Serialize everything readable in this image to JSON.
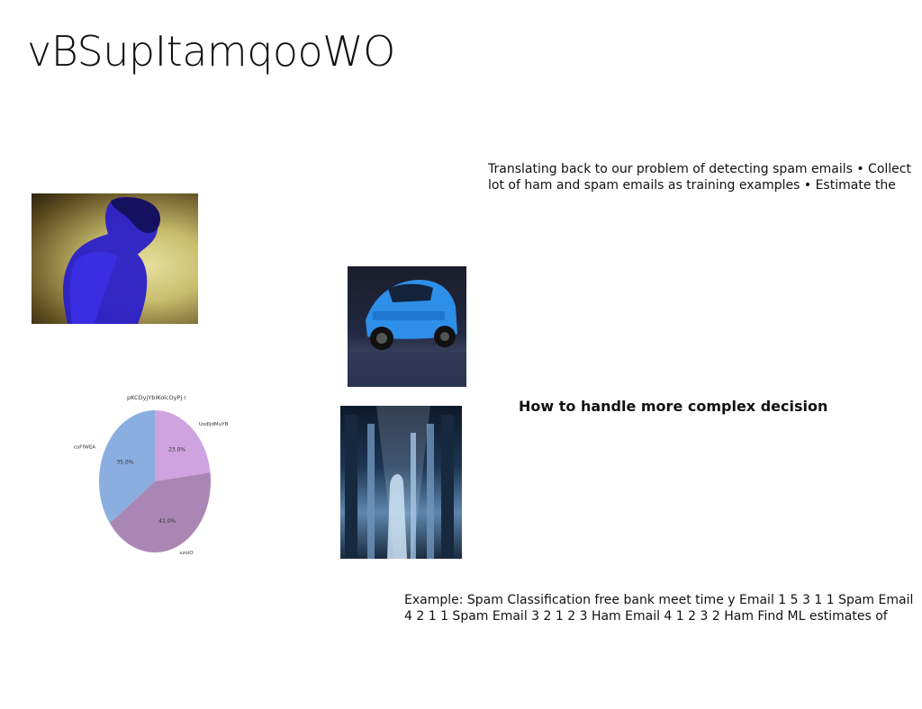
{
  "slide": {
    "title": "vBSupItamqooWO",
    "intro_text": "Translating back to our problem of detecting spam emails • Collect lot of ham and spam emails as training examples • Estimate the",
    "subheading": "How to handle more complex decision",
    "example_text": "Example: Spam Classification free bank meet time y Email 1 5 3 1 1 Spam Email 4 2 1 1 Spam Email 3 2 1 2 3 Ham Email 4 1 2 3 2 Ham Find ML estimates of"
  },
  "images": [
    {
      "name": "person-photo",
      "description": "person"
    },
    {
      "name": "car-photo",
      "description": "car"
    },
    {
      "name": "hall-photo",
      "description": "hall"
    }
  ],
  "chart_data": {
    "type": "pie",
    "title": "pKCDyjYbIKolcOyPj r",
    "slices": [
      {
        "label": "UsdljdMuYB",
        "value": 23.0,
        "pct_label": "23.0%",
        "color": "#cfa3e0"
      },
      {
        "label": "vzoiO",
        "value": 42.0,
        "pct_label": "42.0%",
        "color": "#aa86b5"
      },
      {
        "label": "caFfWEA",
        "value": 35.0,
        "pct_label": "35.0%",
        "color": "#8aaee0"
      }
    ]
  }
}
